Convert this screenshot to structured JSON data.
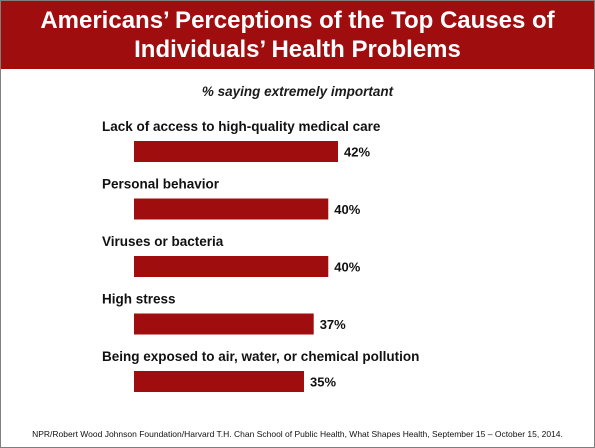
{
  "title": "Americans’ Perceptions of the Top Causes of\nIndividuals’ Health Problems",
  "subtitle": "% saying extremely important",
  "footer": "NPR/Robert Wood Johnson Foundation/Harvard T.H. Chan School of Public Health, What Shapes Health, September 15 – October 15, 2014.",
  "colors": {
    "accent": "#a00d0f",
    "bar": "#a00d0f",
    "text": "#111111"
  },
  "chart_data": {
    "type": "bar",
    "orientation": "horizontal",
    "categories": [
      "Lack of access to high-quality medical care",
      "Personal behavior",
      "Viruses or bacteria",
      "High stress",
      "Being exposed to air, water, or chemical pollution"
    ],
    "values": [
      42,
      40,
      40,
      37,
      35
    ],
    "value_labels": [
      "42%",
      "40%",
      "40%",
      "37%",
      "35%"
    ],
    "title": "Americans’ Perceptions of the Top Causes of Individuals’ Health Problems",
    "subtitle": "% saying extremely important",
    "xlim": [
      0,
      100
    ],
    "grid": false,
    "legend": "none"
  }
}
